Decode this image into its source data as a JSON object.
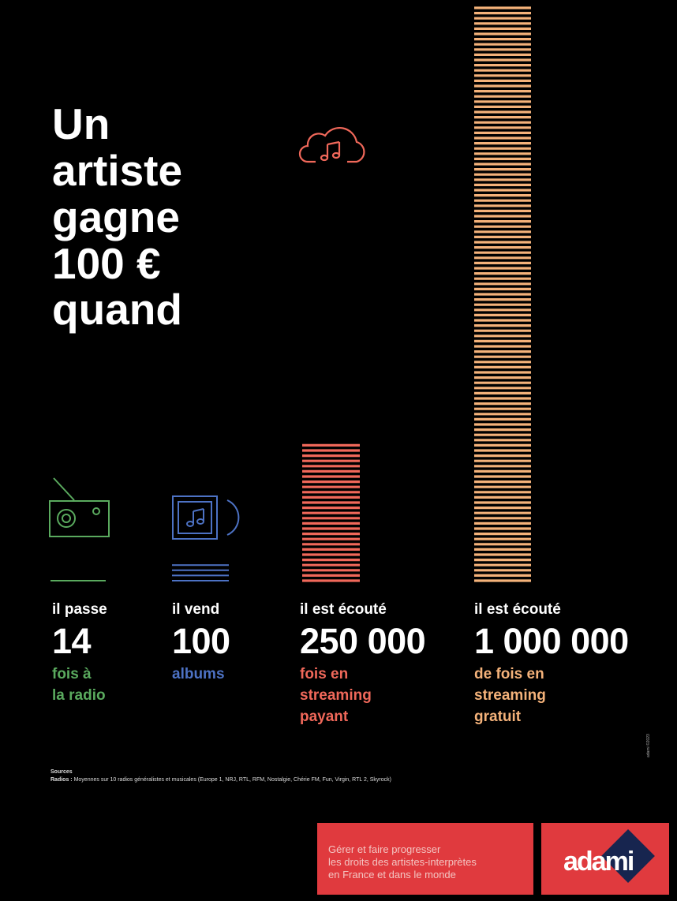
{
  "headline": [
    "Un",
    "artiste",
    "gagne",
    "100 €",
    "quand"
  ],
  "colors": {
    "radio": "#5aaa5e",
    "albums": "#4d72c4",
    "paid": "#f0685a",
    "free": "#f4b27a"
  },
  "chart_data": {
    "type": "bar",
    "categories": [
      "il passe 14 fois à la radio",
      "il vend 100 albums",
      "il est écouté 250 000 fois en streaming payant",
      "il est écouté 1 000 000 de fois en streaming gratuit"
    ],
    "values": [
      14,
      100,
      250000,
      1000000
    ]
  },
  "columns": [
    {
      "verb": "il passe",
      "number": "14",
      "desc": "fois à\nla radio",
      "icon": "radio-icon"
    },
    {
      "verb": "il vend",
      "number": "100",
      "desc": "albums",
      "icon": "album-icon"
    },
    {
      "verb": "il est écouté",
      "number": "250 000",
      "desc": "fois en\nstreaming\npayant",
      "icon": "cloud-music-icon"
    },
    {
      "verb": "il est écouté",
      "number": "1 000 000",
      "desc": "de fois en\nstreaming\ngratuit",
      "icon": ""
    }
  ],
  "sources": {
    "heading": "Sources",
    "label": "Radios :",
    "text": "Moyennes sur 10 radios généralistes et musicales (Europe 1, NRJ, RTL, RFM, Nostalgie, Chérie FM, Fun, Virgin, RTL 2, Skyrock)"
  },
  "credit": "adami ©2023",
  "footer": {
    "tagline": "Gérer et faire progresser\nles droits des artistes-interprètes\nen France et dans le monde",
    "logo": "adami"
  }
}
